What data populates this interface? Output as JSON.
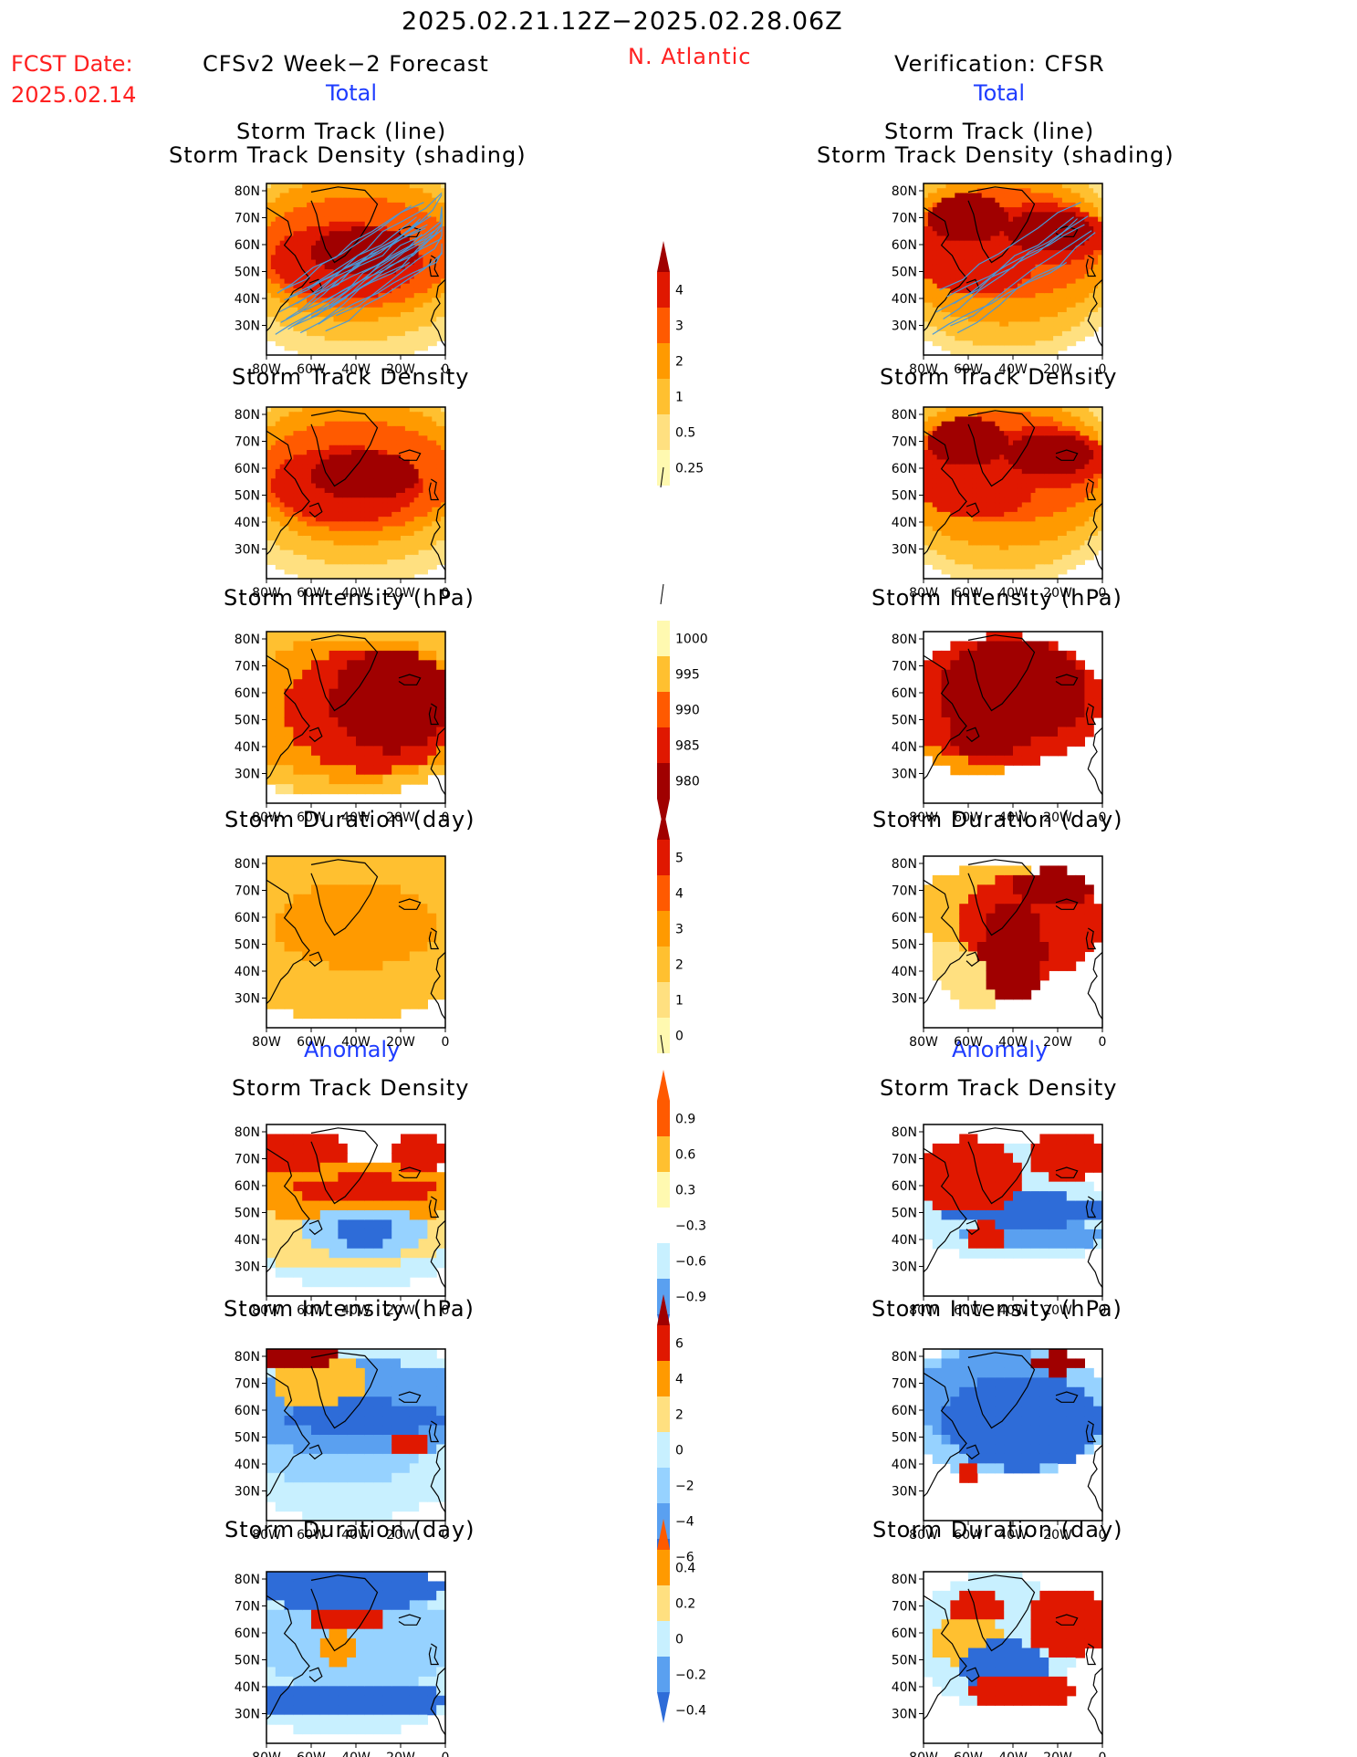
{
  "header": {
    "period": "2025.02.21.12Z−2025.02.28.06Z",
    "fcst_label": "FCST Date:",
    "fcst_date": "2025.02.14",
    "forecast_title": "CFSv2 Week−2 Forecast",
    "region": "N. Atlantic",
    "verification_title": "Verification: CFSR"
  },
  "sections": {
    "total_left": "Total",
    "total_right": "Total",
    "anomaly_left": "Anomaly",
    "anomaly_right": "Anomaly"
  },
  "panel_titles": {
    "track_line": "Storm Track (line)",
    "track_density_shading": "Storm Track Density (shading)",
    "track_density": "Storm Track Density",
    "intensity": "Storm Intensity (hPa)",
    "duration": "Storm Duration (day)"
  },
  "axes": {
    "lat_labels": [
      "80N",
      "70N",
      "60N",
      "50N",
      "40N",
      "30N"
    ],
    "lon_labels": [
      "80W",
      "60W",
      "40W",
      "20W",
      "0"
    ]
  },
  "colorbars": {
    "track_density": [
      "4",
      "3",
      "2",
      "1",
      "0.5",
      "0.25"
    ],
    "intensity": [
      "1000",
      "995",
      "990",
      "985",
      "980"
    ],
    "duration": [
      "5",
      "4",
      "3",
      "2",
      "1",
      "0"
    ],
    "anom_track_density": [
      "0.9",
      "0.6",
      "0.3",
      "−0.3",
      "−0.6",
      "−0.9"
    ],
    "anom_intensity": [
      "6",
      "4",
      "2",
      "0",
      "−2",
      "−4",
      "−6"
    ],
    "anom_duration": [
      "0.4",
      "0.2",
      "0",
      "−0.2",
      "−0.4"
    ]
  },
  "colors": {
    "warm": [
      "#fff9b0",
      "#ffe080",
      "#ffc030",
      "#ff9a00",
      "#ff5a00",
      "#e01800",
      "#a00000"
    ],
    "cool": [
      "#c8f0ff",
      "#96d2ff",
      "#5aa0f0",
      "#2e6cd8"
    ],
    "track_line": "#4a98d8",
    "title_red": "#ff2020",
    "title_blue": "#1e3cff"
  }
}
